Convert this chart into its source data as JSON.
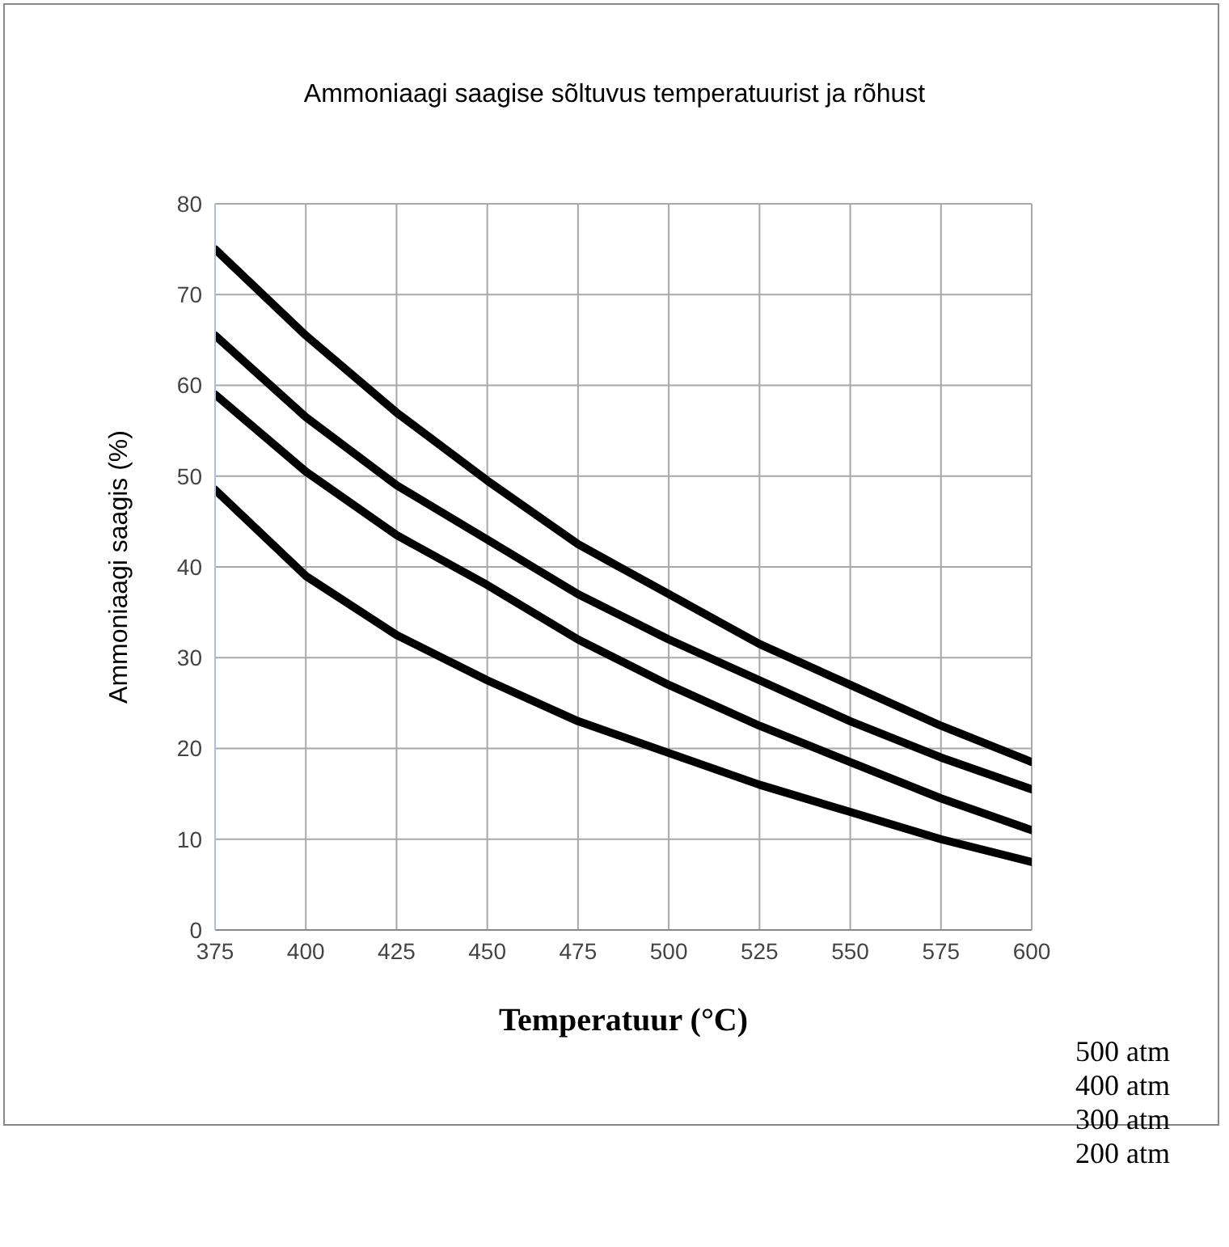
{
  "chart_data": {
    "type": "line",
    "title": "Ammoniaagi saagise sõltuvus temperatuurist ja rõhust",
    "xlabel": "Temperatuur (°C)",
    "ylabel": "Ammoniaagi saagis (%)",
    "x": [
      375,
      400,
      425,
      450,
      475,
      500,
      525,
      550,
      575,
      600
    ],
    "series": [
      {
        "name": "500 atm",
        "color": "#000000",
        "values": [
          75,
          65.5,
          57,
          49.5,
          42.5,
          37,
          31.5,
          27,
          22.5,
          18.5
        ]
      },
      {
        "name": "400 atm",
        "color": "#000000",
        "values": [
          65.5,
          56.5,
          49,
          43,
          37,
          32,
          27.5,
          23,
          19,
          15.5
        ]
      },
      {
        "name": "300 atm",
        "color": "#000000",
        "values": [
          59,
          50.5,
          43.5,
          38,
          32,
          27,
          22.5,
          18.5,
          14.5,
          11
        ]
      },
      {
        "name": "200 atm",
        "color": "#000000",
        "values": [
          48.5,
          39,
          32.5,
          27.5,
          23,
          19.5,
          16,
          13,
          10,
          7.5
        ]
      }
    ],
    "xlim": [
      375,
      600
    ],
    "xticks": [
      375,
      400,
      425,
      450,
      475,
      500,
      525,
      550,
      575,
      600
    ],
    "ylim": [
      0,
      80
    ],
    "yticks": [
      0,
      10,
      20,
      30,
      40,
      50,
      60,
      70,
      80
    ],
    "grid": true,
    "legend": "bottom right",
    "marker": "none",
    "line_style": "solid"
  }
}
